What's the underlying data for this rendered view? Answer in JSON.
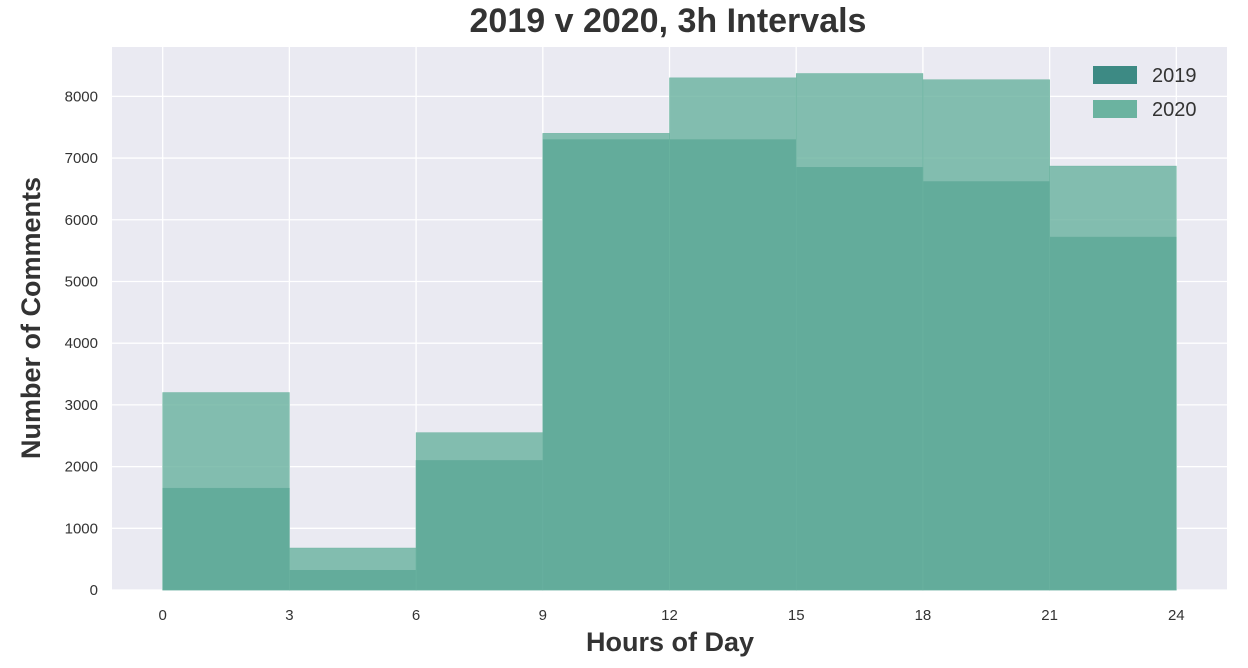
{
  "chart_data": {
    "type": "bar",
    "title": "2019 v 2020, 3h Intervals",
    "xlabel": "Hours of Day",
    "ylabel": "Number of Comments",
    "bin_edges": [
      0,
      3,
      6,
      9,
      12,
      15,
      18,
      21,
      24
    ],
    "x_ticks": [
      "0",
      "3",
      "6",
      "9",
      "12",
      "15",
      "18",
      "21",
      "24"
    ],
    "y_ticks": [
      "0",
      "1000",
      "2000",
      "3000",
      "4000",
      "5000",
      "6000",
      "7000",
      "8000"
    ],
    "xlim": [
      -1.2,
      25.2
    ],
    "ylim": [
      0,
      8800
    ],
    "grid": true,
    "legend_position": "top-right",
    "series": [
      {
        "name": "2019",
        "color": "#3d8a84",
        "values": [
          1650,
          320,
          2100,
          7300,
          7300,
          6850,
          6620,
          5720
        ]
      },
      {
        "name": "2020",
        "color": "#6bb3a0",
        "values": [
          3200,
          680,
          2550,
          7400,
          8300,
          8370,
          8270,
          6870
        ]
      }
    ]
  }
}
